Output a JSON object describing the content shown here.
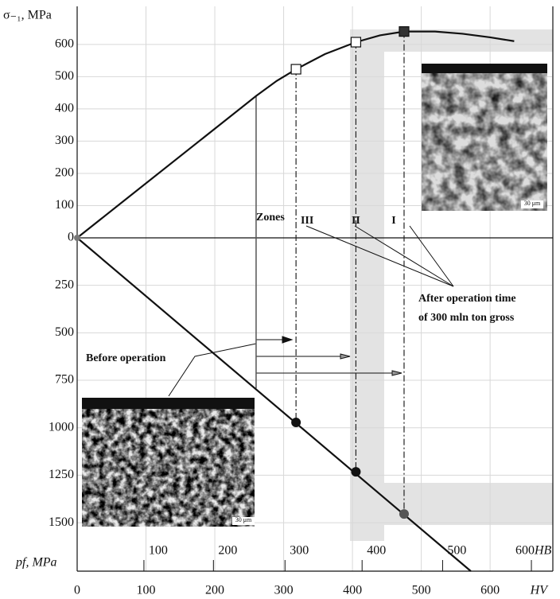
{
  "chart_data": {
    "type": "line",
    "y_label": "σ₋₁, MPa",
    "y2_label": "pf, MPa",
    "x_label": "HV",
    "x2_label": "HB",
    "xlim": [
      0,
      690
    ],
    "xticks": [
      0,
      100,
      200,
      300,
      400,
      500,
      600
    ],
    "x2ticks": [
      100,
      200,
      300,
      400,
      500,
      600
    ],
    "x2tick_hv": [
      97,
      198,
      302,
      414,
      531,
      660
    ],
    "ylim": [
      0,
      718
    ],
    "yticks": [
      0,
      100,
      200,
      300,
      400,
      500,
      600
    ],
    "y2lim": [
      0,
      1755
    ],
    "y2ticks": [
      250,
      500,
      750,
      1000,
      1250,
      1500
    ],
    "grid": true,
    "series": [
      {
        "color": "#111111",
        "x": [
          0,
          260,
          290,
          318,
          360,
          405,
          440,
          475,
          520,
          560,
          600,
          635
        ],
        "values": [
          0,
          440,
          487,
          523,
          570,
          607,
          628,
          640,
          640,
          633,
          622,
          610
        ]
      },
      {
        "color": "#111111",
        "axis": "y2",
        "x": [
          0,
          572
        ],
        "values": [
          0,
          1755
        ]
      }
    ],
    "zone_hv": [
      318,
      405,
      475
    ],
    "zone_sigma": [
      523,
      607,
      640
    ],
    "zone_pf": [
      972,
      1232,
      1454
    ],
    "zone_labels": [
      "III",
      "II",
      "I"
    ],
    "before_hv": 260,
    "before_sigma": 440,
    "before_pf": 792,
    "zones_title": "Zones",
    "after_text": [
      "After operation time",
      "of 300 mln ton gross"
    ],
    "before_text": "Before operation",
    "scale_bar": "30 μm"
  }
}
